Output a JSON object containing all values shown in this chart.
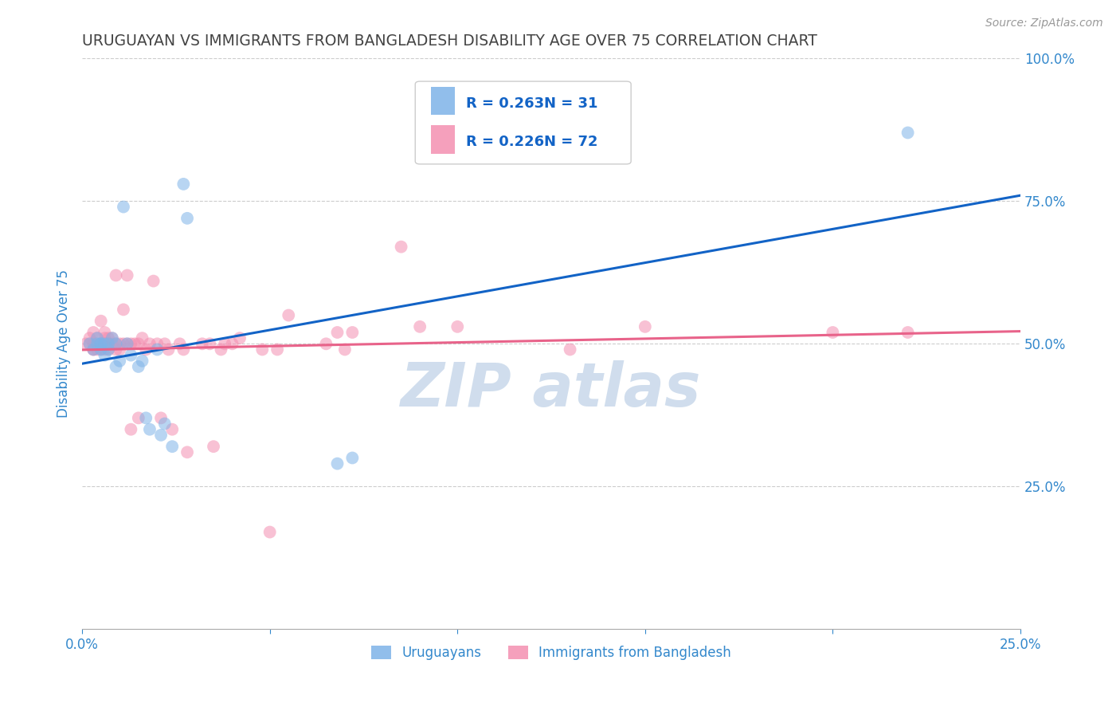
{
  "title": "URUGUAYAN VS IMMIGRANTS FROM BANGLADESH DISABILITY AGE OVER 75 CORRELATION CHART",
  "source": "Source: ZipAtlas.com",
  "ylabel": "Disability Age Over 75",
  "legend_labels": [
    "Uruguayans",
    "Immigrants from Bangladesh"
  ],
  "legend_R_N": [
    {
      "R": "0.263",
      "N": "31"
    },
    {
      "R": "0.226",
      "N": "72"
    }
  ],
  "uruguayan_color": "#7EB3E8",
  "bangladesh_color": "#F48FB1",
  "trend_blue": "#1263C6",
  "trend_pink": "#E8638A",
  "watermark_color": "#C8D8EA",
  "title_color": "#444444",
  "axis_label_color": "#3388CC",
  "grid_color": "#CCCCCC",
  "uruguayan_x": [
    0.002,
    0.003,
    0.004,
    0.004,
    0.005,
    0.005,
    0.005,
    0.006,
    0.006,
    0.007,
    0.007,
    0.008,
    0.009,
    0.009,
    0.01,
    0.011,
    0.012,
    0.013,
    0.015,
    0.016,
    0.017,
    0.018,
    0.02,
    0.021,
    0.022,
    0.024,
    0.027,
    0.028,
    0.068,
    0.072,
    0.22
  ],
  "uruguayan_y": [
    0.5,
    0.49,
    0.5,
    0.51,
    0.5,
    0.5,
    0.49,
    0.5,
    0.48,
    0.5,
    0.49,
    0.51,
    0.5,
    0.46,
    0.47,
    0.74,
    0.5,
    0.48,
    0.46,
    0.47,
    0.37,
    0.35,
    0.49,
    0.34,
    0.36,
    0.32,
    0.78,
    0.72,
    0.29,
    0.3,
    0.87
  ],
  "bangladesh_x": [
    0.001,
    0.002,
    0.002,
    0.003,
    0.003,
    0.003,
    0.003,
    0.004,
    0.004,
    0.004,
    0.005,
    0.005,
    0.005,
    0.006,
    0.006,
    0.006,
    0.006,
    0.006,
    0.007,
    0.007,
    0.007,
    0.007,
    0.008,
    0.008,
    0.009,
    0.009,
    0.009,
    0.01,
    0.01,
    0.011,
    0.011,
    0.012,
    0.012,
    0.013,
    0.013,
    0.014,
    0.015,
    0.015,
    0.016,
    0.017,
    0.018,
    0.019,
    0.02,
    0.021,
    0.022,
    0.023,
    0.024,
    0.026,
    0.027,
    0.028,
    0.032,
    0.034,
    0.035,
    0.037,
    0.038,
    0.04,
    0.042,
    0.048,
    0.05,
    0.052,
    0.055,
    0.065,
    0.068,
    0.07,
    0.072,
    0.085,
    0.09,
    0.1,
    0.13,
    0.15,
    0.2,
    0.22
  ],
  "bangladesh_y": [
    0.5,
    0.51,
    0.5,
    0.5,
    0.49,
    0.49,
    0.52,
    0.49,
    0.5,
    0.51,
    0.5,
    0.49,
    0.54,
    0.5,
    0.49,
    0.51,
    0.52,
    0.5,
    0.5,
    0.51,
    0.5,
    0.49,
    0.51,
    0.5,
    0.5,
    0.49,
    0.62,
    0.5,
    0.49,
    0.5,
    0.56,
    0.5,
    0.62,
    0.5,
    0.35,
    0.5,
    0.37,
    0.5,
    0.51,
    0.49,
    0.5,
    0.61,
    0.5,
    0.37,
    0.5,
    0.49,
    0.35,
    0.5,
    0.49,
    0.31,
    0.5,
    0.5,
    0.32,
    0.49,
    0.5,
    0.5,
    0.51,
    0.49,
    0.17,
    0.49,
    0.55,
    0.5,
    0.52,
    0.49,
    0.52,
    0.67,
    0.53,
    0.53,
    0.49,
    0.53,
    0.52,
    0.52
  ],
  "xlim": [
    0.0,
    0.25
  ],
  "ylim": [
    0.0,
    1.0
  ],
  "x_ticks": [
    0.0,
    0.05,
    0.1,
    0.15,
    0.2,
    0.25
  ],
  "x_tick_labels_show": [
    "0.0%",
    "",
    "",
    "",
    "",
    "25.0%"
  ],
  "y_ticks_right": [
    1.0,
    0.75,
    0.5,
    0.25
  ],
  "marker_size": 130,
  "marker_alpha": 0.55,
  "trend_linewidth": 2.2
}
